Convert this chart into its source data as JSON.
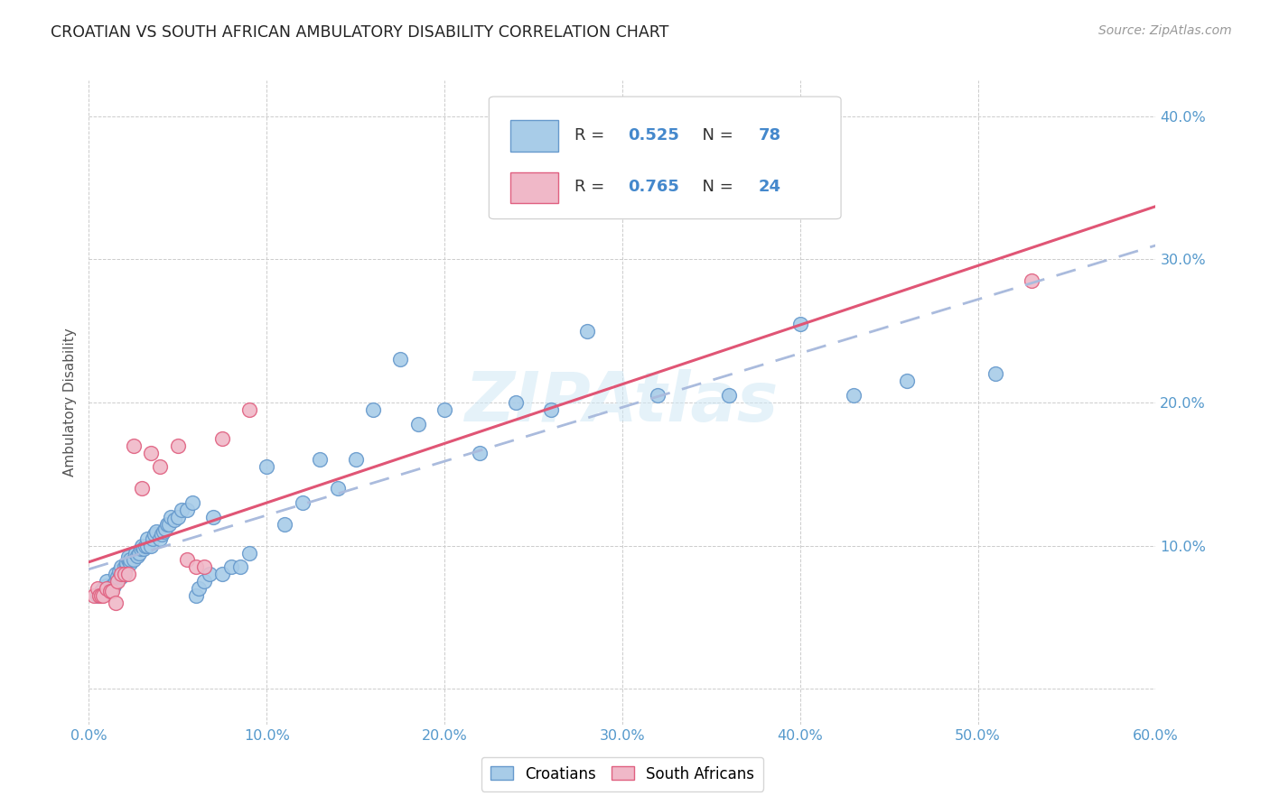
{
  "title": "CROATIAN VS SOUTH AFRICAN AMBULATORY DISABILITY CORRELATION CHART",
  "source": "Source: ZipAtlas.com",
  "ylabel": "Ambulatory Disability",
  "xlim": [
    0.0,
    0.6
  ],
  "ylim": [
    -0.025,
    0.425
  ],
  "x_ticks": [
    0.0,
    0.1,
    0.2,
    0.3,
    0.4,
    0.5,
    0.6
  ],
  "x_tick_labels": [
    "0.0%",
    "10.0%",
    "20.0%",
    "30.0%",
    "40.0%",
    "50.0%",
    "60.0%"
  ],
  "y_ticks": [
    0.0,
    0.1,
    0.2,
    0.3,
    0.4
  ],
  "y_tick_labels_right": [
    "",
    "10.0%",
    "20.0%",
    "30.0%",
    "40.0%"
  ],
  "croatians_x": [
    0.005,
    0.007,
    0.008,
    0.01,
    0.01,
    0.012,
    0.013,
    0.013,
    0.014,
    0.015,
    0.015,
    0.016,
    0.017,
    0.018,
    0.018,
    0.019,
    0.02,
    0.021,
    0.021,
    0.022,
    0.022,
    0.023,
    0.023,
    0.025,
    0.026,
    0.027,
    0.028,
    0.029,
    0.03,
    0.031,
    0.032,
    0.033,
    0.033,
    0.035,
    0.036,
    0.037,
    0.038,
    0.04,
    0.041,
    0.042,
    0.043,
    0.044,
    0.045,
    0.046,
    0.048,
    0.05,
    0.052,
    0.055,
    0.058,
    0.06,
    0.062,
    0.065,
    0.068,
    0.07,
    0.075,
    0.08,
    0.085,
    0.09,
    0.1,
    0.11,
    0.12,
    0.13,
    0.14,
    0.15,
    0.16,
    0.175,
    0.185,
    0.2,
    0.22,
    0.24,
    0.26,
    0.28,
    0.32,
    0.36,
    0.4,
    0.43,
    0.46,
    0.51
  ],
  "croatians_y": [
    0.065,
    0.068,
    0.07,
    0.072,
    0.075,
    0.068,
    0.07,
    0.072,
    0.072,
    0.075,
    0.08,
    0.078,
    0.082,
    0.078,
    0.085,
    0.08,
    0.085,
    0.085,
    0.088,
    0.09,
    0.092,
    0.088,
    0.09,
    0.09,
    0.095,
    0.093,
    0.095,
    0.098,
    0.1,
    0.098,
    0.1,
    0.1,
    0.105,
    0.1,
    0.105,
    0.108,
    0.11,
    0.105,
    0.108,
    0.11,
    0.112,
    0.115,
    0.115,
    0.12,
    0.118,
    0.12,
    0.125,
    0.125,
    0.13,
    0.065,
    0.07,
    0.075,
    0.08,
    0.12,
    0.08,
    0.085,
    0.085,
    0.095,
    0.155,
    0.115,
    0.13,
    0.16,
    0.14,
    0.16,
    0.195,
    0.23,
    0.185,
    0.195,
    0.165,
    0.2,
    0.195,
    0.25,
    0.205,
    0.205,
    0.255,
    0.205,
    0.215,
    0.22
  ],
  "south_africans_x": [
    0.003,
    0.005,
    0.006,
    0.007,
    0.008,
    0.01,
    0.012,
    0.013,
    0.015,
    0.016,
    0.018,
    0.02,
    0.022,
    0.025,
    0.03,
    0.035,
    0.04,
    0.05,
    0.055,
    0.06,
    0.065,
    0.075,
    0.09,
    0.53
  ],
  "south_africans_y": [
    0.065,
    0.07,
    0.065,
    0.065,
    0.065,
    0.07,
    0.068,
    0.068,
    0.06,
    0.075,
    0.08,
    0.08,
    0.08,
    0.17,
    0.14,
    0.165,
    0.155,
    0.17,
    0.09,
    0.085,
    0.085,
    0.175,
    0.195,
    0.285
  ],
  "croatian_R": 0.525,
  "croatian_N": 78,
  "south_african_R": 0.765,
  "south_african_N": 24,
  "croatian_scatter_color": "#a8cce8",
  "croatian_scatter_edge": "#6699cc",
  "south_african_scatter_color": "#f0b8c8",
  "south_african_scatter_edge": "#e06080",
  "croatian_line_color": "#aabbdd",
  "south_african_line_color": "#e05575",
  "legend_text_color": "#333333",
  "legend_value_color": "#4488cc",
  "background_color": "#ffffff",
  "grid_color": "#cccccc",
  "tick_color": "#5599cc",
  "watermark_color": "#d0e8f5"
}
